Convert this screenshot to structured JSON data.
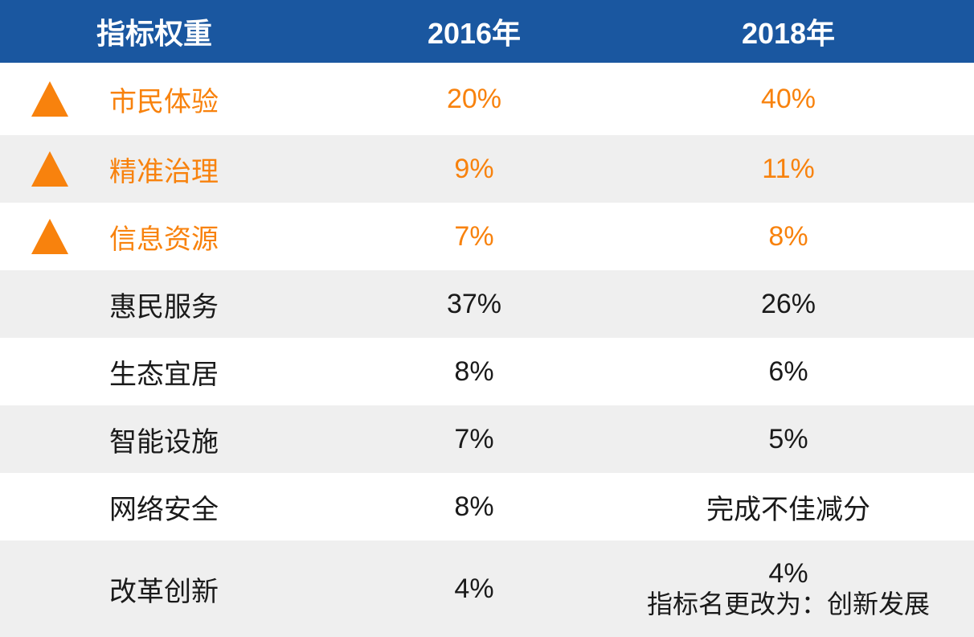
{
  "colors": {
    "header_bg": "#1A57A0",
    "header_text": "#FFFFFF",
    "accent_orange": "#F8820D",
    "row_alt_bg": "#EFEFEF",
    "body_text": "#1A1A1A"
  },
  "chart_data": {
    "type": "table",
    "columns": [
      "指标权重",
      "2016年",
      "2018年"
    ],
    "legend_hint": "orange rows with up-triangle mark indicators whose weight increased",
    "rows": [
      {
        "indicator": "市民体验",
        "y2016": "20%",
        "y2018": "40%",
        "trend_icon": "up-triangle",
        "highlighted": true
      },
      {
        "indicator": "精准治理",
        "y2016": "9%",
        "y2018": "11%",
        "trend_icon": "up-triangle",
        "highlighted": true
      },
      {
        "indicator": "信息资源",
        "y2016": "7%",
        "y2018": "8%",
        "trend_icon": "up-triangle",
        "highlighted": true
      },
      {
        "indicator": "惠民服务",
        "y2016": "37%",
        "y2018": "26%",
        "trend_icon": "",
        "highlighted": false
      },
      {
        "indicator": "生态宜居",
        "y2016": "8%",
        "y2018": "6%",
        "trend_icon": "",
        "highlighted": false
      },
      {
        "indicator": "智能设施",
        "y2016": "7%",
        "y2018": "5%",
        "trend_icon": "",
        "highlighted": false
      },
      {
        "indicator": "网络安全",
        "y2016": "8%",
        "y2018": "完成不佳减分",
        "trend_icon": "",
        "highlighted": false
      },
      {
        "indicator": "改革创新",
        "y2016": "4%",
        "y2018": "4%",
        "y2018_note": "指标名更改为：创新发展",
        "trend_icon": "",
        "highlighted": false
      }
    ]
  }
}
